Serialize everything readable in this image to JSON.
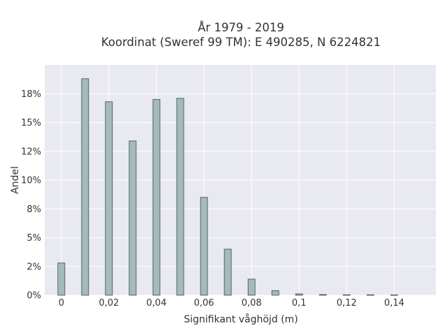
{
  "chart_data": {
    "type": "bar",
    "title": [
      "År 1979 - 2019",
      "Koordinat (Sweref 99 TM): E 490285, N 6224821"
    ],
    "xlabel": "Signifikant våghöjd (m)",
    "ylabel": "Andel",
    "x": [
      0,
      0.01,
      0.02,
      0.03,
      0.04,
      0.05,
      0.06,
      0.07,
      0.08,
      0.09,
      0.1,
      0.11,
      0.12,
      0.13,
      0.14
    ],
    "values": [
      0.028,
      0.188,
      0.168,
      0.134,
      0.17,
      0.171,
      0.085,
      0.04,
      0.014,
      0.004,
      0.0012,
      0.0006,
      0.0004,
      0.0004,
      0.0003
    ],
    "xlim": [
      -0.007,
      0.1575
    ],
    "ylim": [
      0,
      0.2
    ],
    "xticks": [
      0,
      0.02,
      0.04,
      0.06,
      0.08,
      0.1,
      0.12,
      0.14
    ],
    "xtick_labels": [
      "0",
      "0,02",
      "0,04",
      "0,06",
      "0,08",
      "0,1",
      "0,12",
      "0,14"
    ],
    "yticks": [
      0,
      0.025,
      0.05,
      0.075,
      0.1,
      0.125,
      0.15,
      0.175
    ],
    "ytick_labels": [
      "0%",
      "2%",
      "5%",
      "8%",
      "10%",
      "12%",
      "15%",
      "18%"
    ],
    "grid": true,
    "bar_color": "#a4babb",
    "bar_edge_color": "#3d4a4a",
    "plot_bg": "#e9e9f2",
    "grid_color": "#ffffff"
  }
}
